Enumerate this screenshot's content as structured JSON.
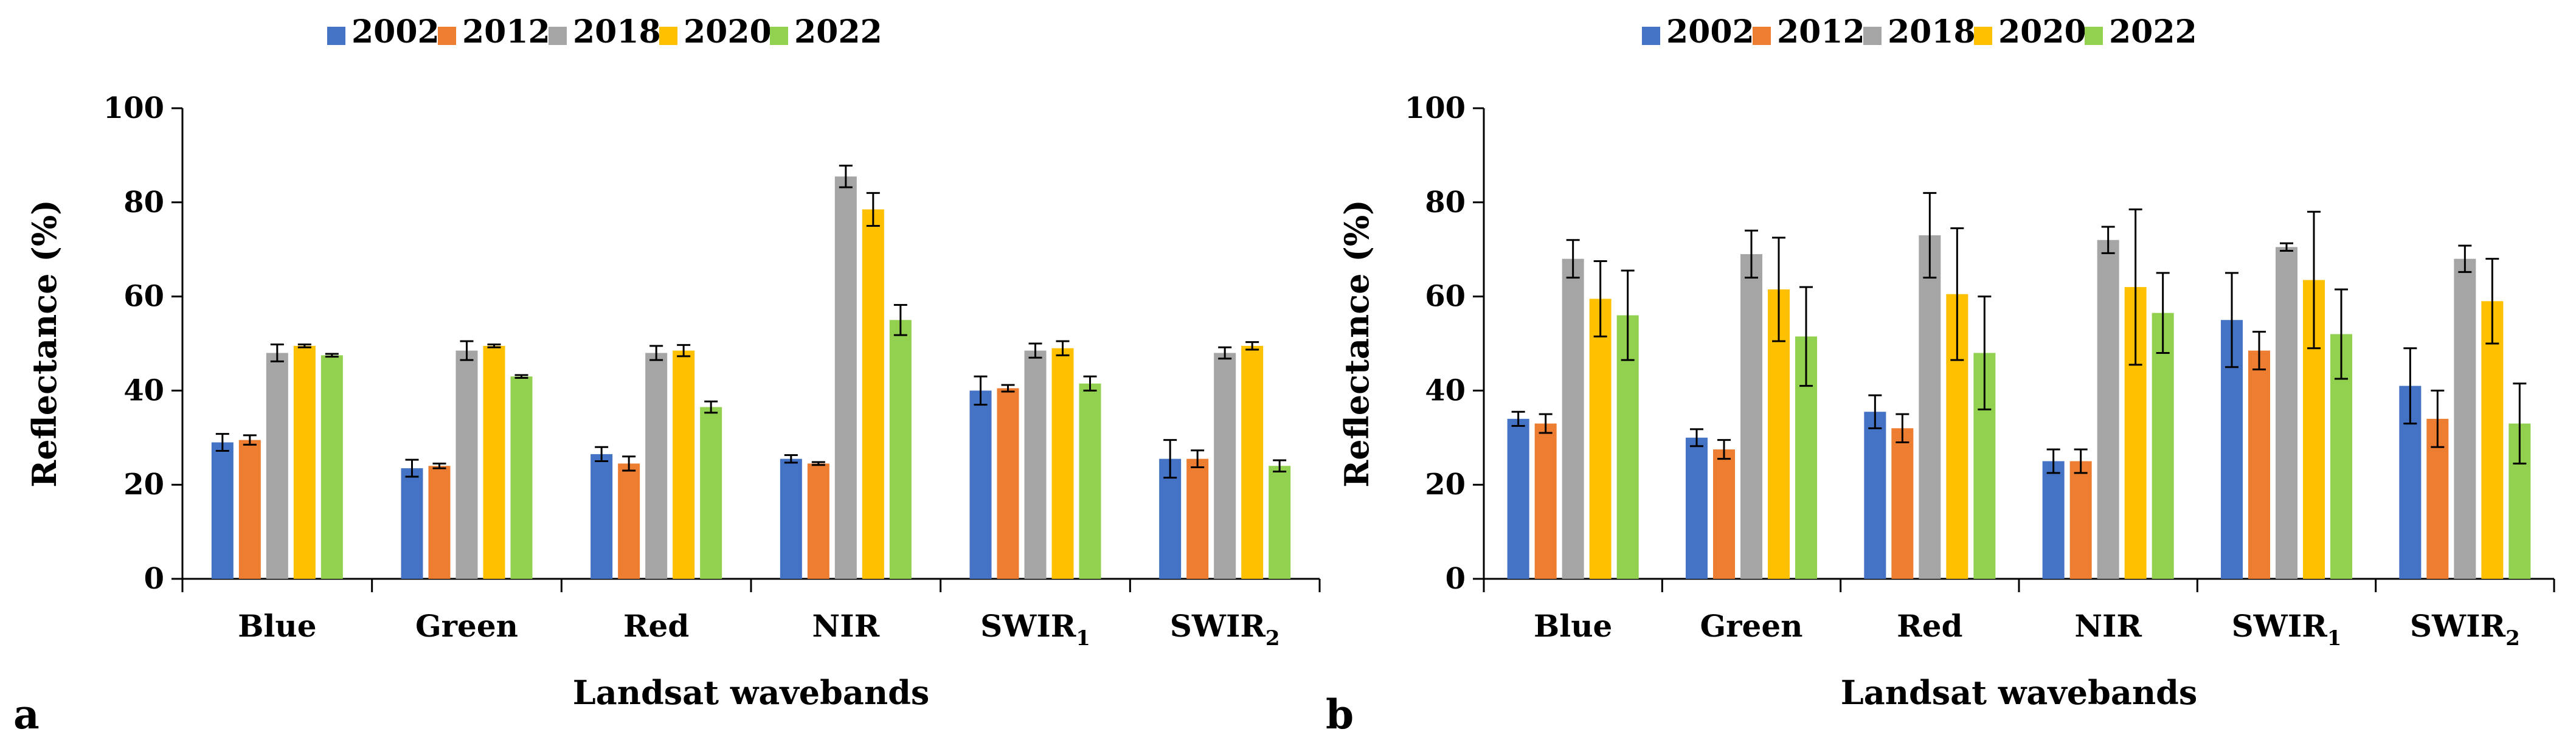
{
  "colors": {
    "2002": "#4472c4",
    "2012": "#ed7d31",
    "2018": "#a5a5a5",
    "2020": "#ffc000",
    "2022": "#92d050"
  },
  "chart_data": [
    {
      "type": "bar",
      "panel_label": "a",
      "xlabel": "Landsat wavebands",
      "ylabel": "Reflectance (%)",
      "ylim": [
        0,
        100
      ],
      "yticks": [
        "0",
        "20",
        "40",
        "60",
        "80",
        "100"
      ],
      "categories": [
        {
          "base": "Blue",
          "sub": ""
        },
        {
          "base": "Green",
          "sub": ""
        },
        {
          "base": "Red",
          "sub": ""
        },
        {
          "base": "NIR",
          "sub": ""
        },
        {
          "base": "SWIR",
          "sub": "1"
        },
        {
          "base": "SWIR",
          "sub": "2"
        }
      ],
      "series": [
        {
          "name": "2002",
          "values": [
            29,
            23.5,
            26.5,
            25.5,
            40,
            25.5
          ],
          "errors": [
            1.8,
            1.8,
            1.5,
            0.8,
            3,
            4
          ]
        },
        {
          "name": "2012",
          "values": [
            29.5,
            24,
            24.5,
            24.5,
            40.5,
            25.5
          ],
          "errors": [
            1,
            0.5,
            1.5,
            0.3,
            0.7,
            1.8
          ]
        },
        {
          "name": "2018",
          "values": [
            48,
            48.5,
            48,
            85.5,
            48.5,
            48
          ],
          "errors": [
            1.8,
            2,
            1.5,
            2.3,
            1.5,
            1.2
          ]
        },
        {
          "name": "2020",
          "values": [
            49.5,
            49.5,
            48.5,
            78.5,
            49,
            49.5
          ],
          "errors": [
            0.3,
            0.3,
            1.2,
            3.5,
            1.5,
            0.8
          ]
        },
        {
          "name": "2022",
          "values": [
            47.5,
            43,
            36.5,
            55,
            41.5,
            24
          ],
          "errors": [
            0.3,
            0.3,
            1.2,
            3.2,
            1.5,
            1.2
          ]
        }
      ]
    },
    {
      "type": "bar",
      "panel_label": "b",
      "xlabel": "Landsat wavebands",
      "ylabel": "Reflectance (%)",
      "ylim": [
        0,
        100
      ],
      "yticks": [
        "0",
        "20",
        "40",
        "60",
        "80",
        "100"
      ],
      "categories": [
        {
          "base": "Blue",
          "sub": ""
        },
        {
          "base": "Green",
          "sub": ""
        },
        {
          "base": "Red",
          "sub": ""
        },
        {
          "base": "NIR",
          "sub": ""
        },
        {
          "base": "SWIR",
          "sub": "1"
        },
        {
          "base": "SWIR",
          "sub": "2"
        }
      ],
      "series": [
        {
          "name": "2002",
          "values": [
            34,
            30,
            35.5,
            25,
            55,
            41
          ],
          "errors": [
            1.5,
            1.8,
            3.5,
            2.5,
            10,
            8
          ]
        },
        {
          "name": "2012",
          "values": [
            33,
            27.5,
            32,
            25,
            48.5,
            34
          ],
          "errors": [
            2,
            2,
            3,
            2.5,
            4,
            6
          ]
        },
        {
          "name": "2018",
          "values": [
            68,
            69,
            73,
            72,
            70.5,
            68
          ],
          "errors": [
            4,
            5,
            9,
            2.8,
            0.8,
            2.8
          ]
        },
        {
          "name": "2020",
          "values": [
            59.5,
            61.5,
            60.5,
            62,
            63.5,
            59
          ],
          "errors": [
            8,
            11,
            14,
            16.5,
            14.5,
            9
          ]
        },
        {
          "name": "2022",
          "values": [
            56,
            51.5,
            48,
            56.5,
            52,
            33
          ],
          "errors": [
            9.5,
            10.5,
            12,
            8.5,
            9.5,
            8.5
          ]
        }
      ]
    }
  ]
}
